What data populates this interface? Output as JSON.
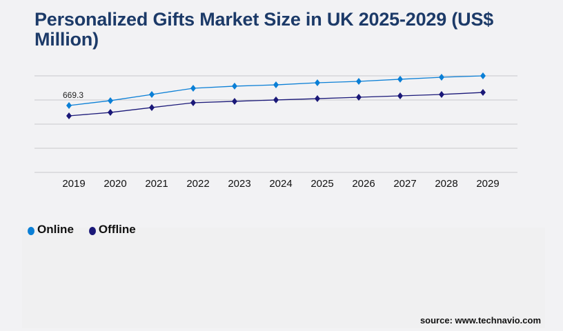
{
  "chart_data": {
    "type": "line",
    "title": "Personalized Gifts Market Size in UK 2025-2029 (US$ Million)",
    "xlabel": "",
    "ylabel": "",
    "categories": [
      "2019",
      "2020",
      "2021",
      "2022",
      "2023",
      "2024",
      "2025",
      "2026",
      "2027",
      "2028",
      "2029"
    ],
    "series": [
      {
        "name": "Online",
        "color": "#0a7fd6",
        "values": [
          669.3,
          718,
          780,
          842,
          863,
          876,
          897,
          911,
          932,
          952,
          966
        ]
      },
      {
        "name": "Offline",
        "color": "#1a1878",
        "values": [
          566,
          600,
          649,
          697,
          711,
          725,
          738,
          752,
          766,
          780,
          800
        ]
      }
    ],
    "data_labels": [
      {
        "series": "Online",
        "category": "2019",
        "text": "669.3"
      }
    ],
    "ylim": [
      0,
      966
    ],
    "y_gridlines": 5,
    "y_tick_labels_shown": false,
    "grid": true,
    "legend_position": "bottom-left",
    "marker": "diamond"
  },
  "source": "source: www.technavio.com"
}
